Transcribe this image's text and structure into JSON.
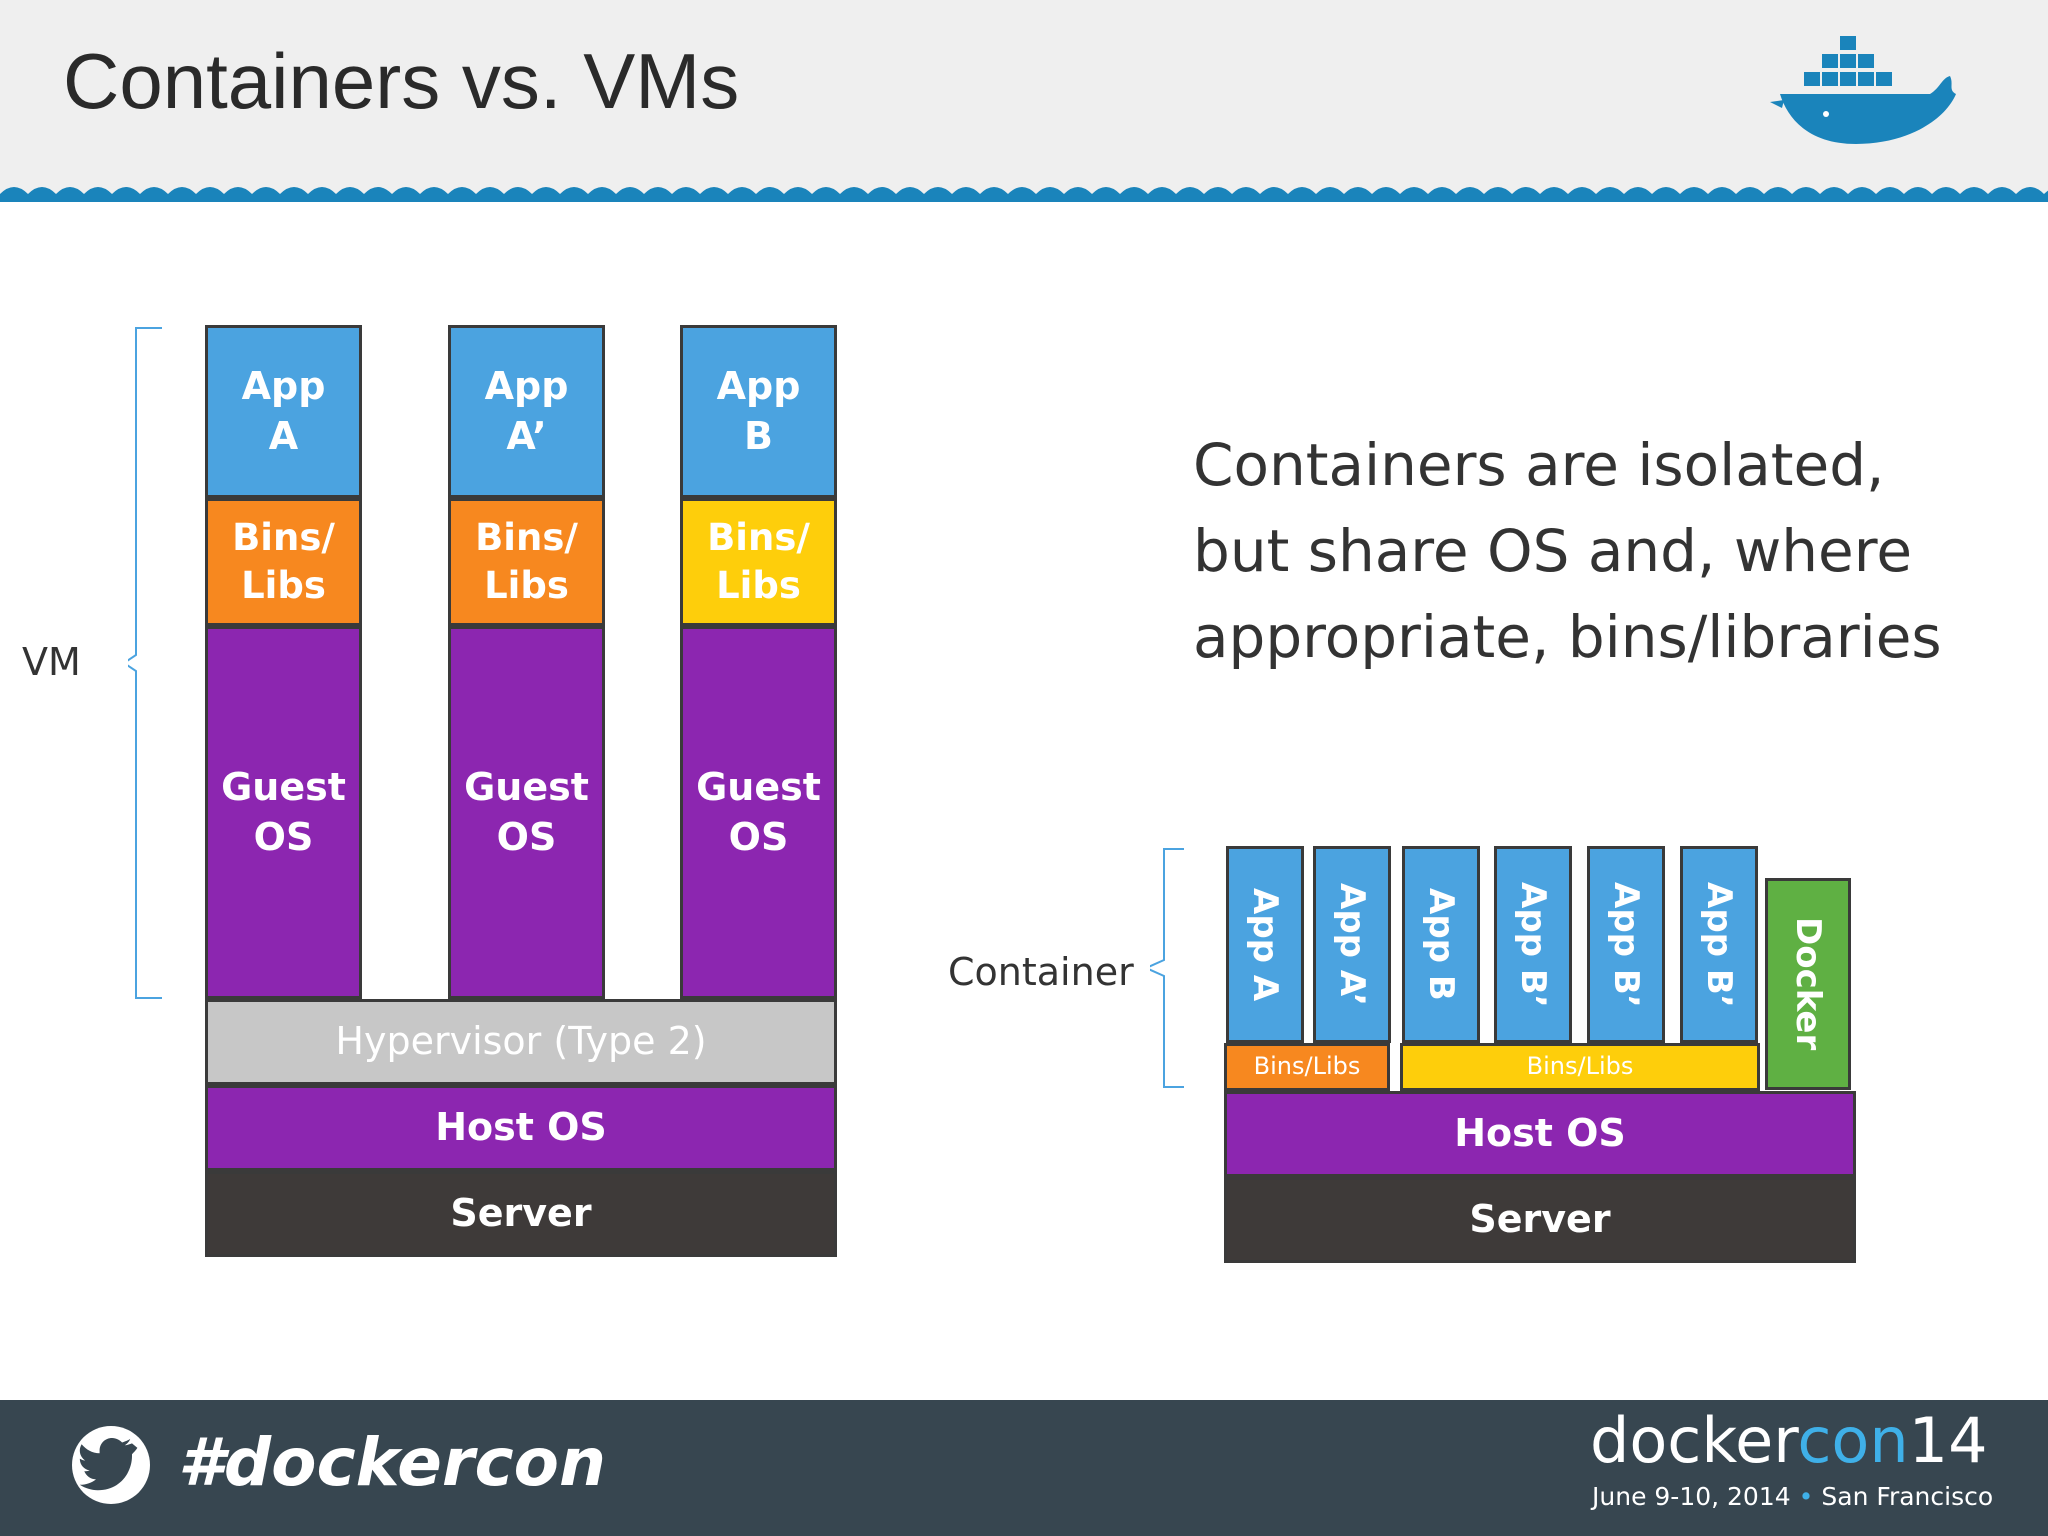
{
  "header": {
    "title": "Containers vs. VMs"
  },
  "vm_diagram": {
    "bracket_label": "VM",
    "stacks": [
      {
        "app": "App\nA",
        "bins": "Bins/\nLibs",
        "guest": "Guest\nOS",
        "bins_color": "#f7881f"
      },
      {
        "app": "App\nA’",
        "bins": "Bins/\nLibs",
        "guest": "Guest\nOS",
        "bins_color": "#f7881f"
      },
      {
        "app": "App\nB",
        "bins": "Bins/\nLibs",
        "guest": "Guest\nOS",
        "bins_color": "#fece0b"
      }
    ],
    "hypervisor": "Hypervisor (Type 2)",
    "host_os": "Host OS",
    "server": "Server"
  },
  "description": {
    "lines": [
      "Containers are isolated,",
      "but share OS and, where",
      "appropriate, bins/libraries"
    ]
  },
  "container_diagram": {
    "bracket_label": "Container",
    "apps": [
      "App A",
      "App A’",
      "App B",
      "App B’",
      "App B’",
      "App B’"
    ],
    "docker": "Docker",
    "bins_a": "Bins/Libs",
    "bins_b": "Bins/Libs",
    "host_os": "Host OS",
    "server": "Server"
  },
  "footer": {
    "hashtag": "#dockercon",
    "brand_docker": "docker",
    "brand_con": "con",
    "brand_num": "14",
    "dates": "June 9-10, 2014",
    "separator": "•",
    "city": "San Francisco"
  },
  "colors": {
    "app": "#4ba3e0",
    "bins_orange": "#f7881f",
    "bins_yellow": "#fece0b",
    "guest_os": "#8c26b0",
    "hypervisor": "#c7c7c7",
    "server": "#3e3a39",
    "docker": "#5fb043",
    "footer": "#374650",
    "wave": "#1a84bb"
  }
}
